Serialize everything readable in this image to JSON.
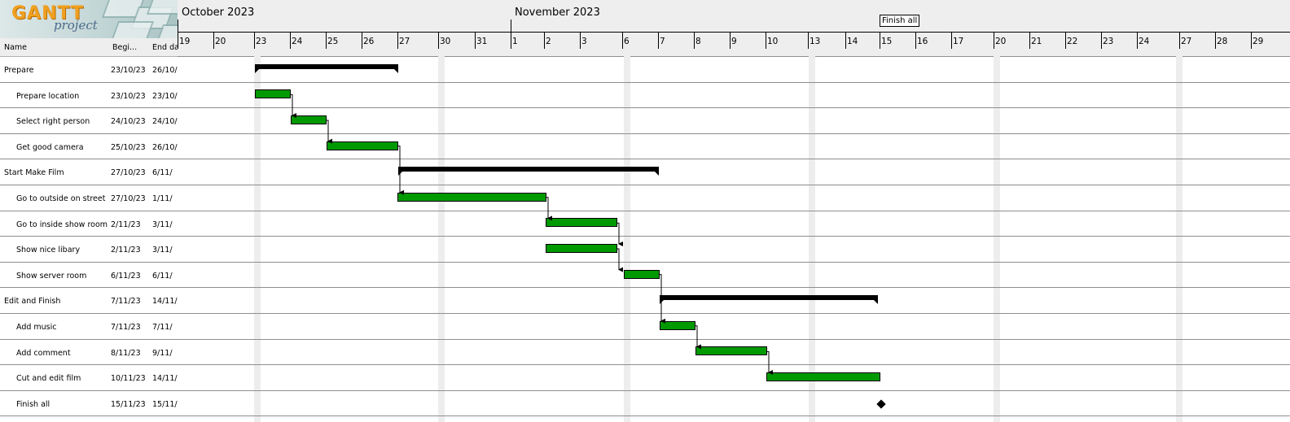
{
  "logo": {
    "main": "GANTT",
    "sub": "project"
  },
  "table": {
    "headers": {
      "name": "Name",
      "begin": "Begi...",
      "end": "End da"
    },
    "rows": [
      {
        "name": "Prepare",
        "begin": "23/10/23",
        "end": "26/10/",
        "indent": false
      },
      {
        "name": "Prepare location",
        "begin": "23/10/23",
        "end": "23/10/",
        "indent": true
      },
      {
        "name": "Select right person",
        "begin": "24/10/23",
        "end": "24/10/",
        "indent": true
      },
      {
        "name": "Get good camera",
        "begin": "25/10/23",
        "end": "26/10/",
        "indent": true
      },
      {
        "name": "Start Make Film",
        "begin": "27/10/23",
        "end": "6/11/",
        "indent": false
      },
      {
        "name": "Go to outside on street",
        "begin": "27/10/23",
        "end": "1/11/",
        "indent": true
      },
      {
        "name": "Go to inside show room",
        "begin": "2/11/23",
        "end": "3/11/",
        "indent": true
      },
      {
        "name": "Show nice libary",
        "begin": "2/11/23",
        "end": "3/11/",
        "indent": true
      },
      {
        "name": "Show server room",
        "begin": "6/11/23",
        "end": "6/11/",
        "indent": true
      },
      {
        "name": "Edit and Finish",
        "begin": "7/11/23",
        "end": "14/11/",
        "indent": false
      },
      {
        "name": "Add music",
        "begin": "7/11/23",
        "end": "7/11/",
        "indent": true
      },
      {
        "name": "Add comment",
        "begin": "8/11/23",
        "end": "9/11/",
        "indent": true
      },
      {
        "name": "Cut and edit film",
        "begin": "10/11/23",
        "end": "14/11/",
        "indent": true
      },
      {
        "name": "Finish all",
        "begin": "15/11/23",
        "end": "15/11/",
        "indent": true
      }
    ]
  },
  "timeline": {
    "months": [
      "October 2023",
      "November 2023"
    ],
    "days": [
      "19",
      "20",
      "23",
      "24",
      "25",
      "26",
      "27",
      "30",
      "31",
      "1",
      "2",
      "3",
      "6",
      "7",
      "8",
      "9",
      "10",
      "13",
      "14",
      "15",
      "16",
      "17",
      "20",
      "21",
      "22",
      "23",
      "24",
      "27",
      "28",
      "29"
    ],
    "milestone_label": "Finish all"
  },
  "colors": {
    "task_bar": "#009900",
    "summary_bar": "#000000",
    "weekend": "#ededed",
    "header_bg": "#eeeeee"
  }
}
